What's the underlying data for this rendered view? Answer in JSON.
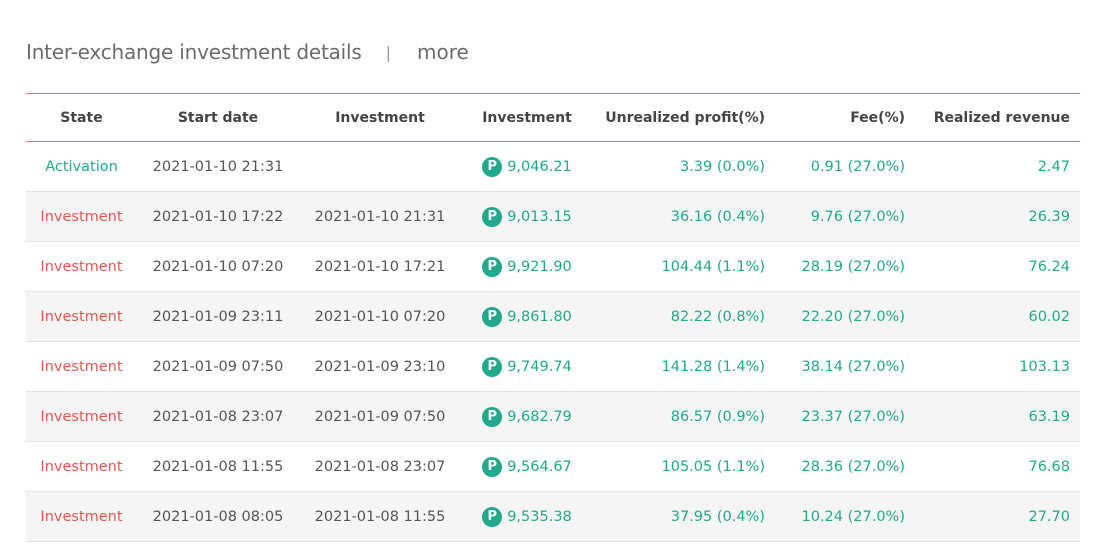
{
  "header": {
    "title": "Inter-exchange investment details",
    "separator": "|",
    "more": "more"
  },
  "table": {
    "columns": [
      "State",
      "Start date",
      "Investment",
      "Investment",
      "Unrealized profit(%)",
      "Fee(%)",
      "Realized revenue"
    ],
    "coin_glyph": "P",
    "rows": [
      {
        "state": "Activation",
        "start": "2021-01-10 21:31",
        "end": "",
        "amount": "9,046.21",
        "unrealized": "3.39 (0.0%)",
        "fee": "0.91 (27.0%)",
        "revenue": "2.47"
      },
      {
        "state": "Investment",
        "start": "2021-01-10 17:22",
        "end": "2021-01-10 21:31",
        "amount": "9,013.15",
        "unrealized": "36.16 (0.4%)",
        "fee": "9.76 (27.0%)",
        "revenue": "26.39"
      },
      {
        "state": "Investment",
        "start": "2021-01-10 07:20",
        "end": "2021-01-10 17:21",
        "amount": "9,921.90",
        "unrealized": "104.44 (1.1%)",
        "fee": "28.19 (27.0%)",
        "revenue": "76.24"
      },
      {
        "state": "Investment",
        "start": "2021-01-09 23:11",
        "end": "2021-01-10 07:20",
        "amount": "9,861.80",
        "unrealized": "82.22 (0.8%)",
        "fee": "22.20 (27.0%)",
        "revenue": "60.02"
      },
      {
        "state": "Investment",
        "start": "2021-01-09 07:50",
        "end": "2021-01-09 23:10",
        "amount": "9,749.74",
        "unrealized": "141.28 (1.4%)",
        "fee": "38.14 (27.0%)",
        "revenue": "103.13"
      },
      {
        "state": "Investment",
        "start": "2021-01-08 23:07",
        "end": "2021-01-09 07:50",
        "amount": "9,682.79",
        "unrealized": "86.57 (0.9%)",
        "fee": "23.37 (27.0%)",
        "revenue": "63.19"
      },
      {
        "state": "Investment",
        "start": "2021-01-08 11:55",
        "end": "2021-01-08 23:07",
        "amount": "9,564.67",
        "unrealized": "105.05 (1.1%)",
        "fee": "28.36 (27.0%)",
        "revenue": "76.68"
      },
      {
        "state": "Investment",
        "start": "2021-01-08 08:05",
        "end": "2021-01-08 11:55",
        "amount": "9,535.38",
        "unrealized": "37.95 (0.4%)",
        "fee": "10.24 (27.0%)",
        "revenue": "27.70"
      }
    ]
  },
  "colors": {
    "accent": "#22a88b",
    "investment_state": "#e05a52",
    "border": "#3db79c"
  }
}
